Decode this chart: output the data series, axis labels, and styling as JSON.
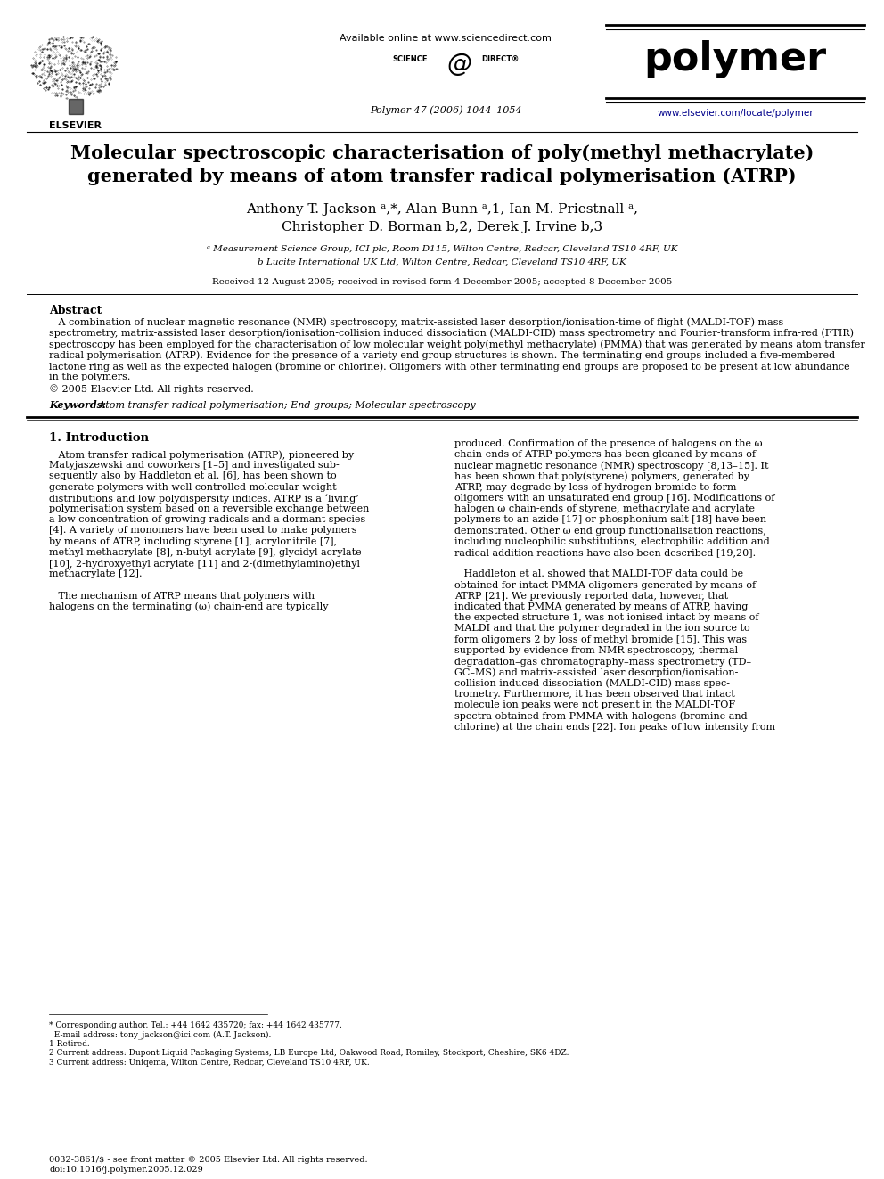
{
  "title_line1": "Molecular spectroscopic characterisation of poly(methyl methacrylate)",
  "title_line2": "generated by means of atom transfer radical polymerisation (ATRP)",
  "authors_line1": "Anthony T. Jackson ᵃ,*, Alan Bunn ᵃ,1, Ian M. Priestnall ᵃ,",
  "authors_line2": "Christopher D. Borman b,2, Derek J. Irvine b,3",
  "affil_a": "ᵃ Measurement Science Group, ICI plc, Room D115, Wilton Centre, Redcar, Cleveland TS10 4RF, UK",
  "affil_b": "b Lucite International UK Ltd, Wilton Centre, Redcar, Cleveland TS10 4RF, UK",
  "received": "Received 12 August 2005; received in revised form 4 December 2005; accepted 8 December 2005",
  "journal_info": "Polymer 47 (2006) 1044–1054",
  "available_online": "Available online at www.sciencedirect.com",
  "journal_name": "polymer",
  "journal_url": "www.elsevier.com/locate/polymer",
  "abstract_title": "Abstract",
  "keywords_label": "Keywords:",
  "keywords_text": " Atom transfer radical polymerisation; End groups; Molecular spectroscopy",
  "section1_title": "1. Introduction",
  "copyright_footer": "0032-3861/$ - see front matter © 2005 Elsevier Ltd. All rights reserved.\ndoi:10.1016/j.polymer.2005.12.029",
  "bg_color": "#ffffff",
  "text_color": "#000000",
  "link_color": "#00008B",
  "abstract_lines": [
    "   A combination of nuclear magnetic resonance (NMR) spectroscopy, matrix-assisted laser desorption/ionisation-time of flight (MALDI-TOF) mass",
    "spectrometry, matrix-assisted laser desorption/ionisation-collision induced dissociation (MALDI-CID) mass spectrometry and Fourier-transform infra-red (FTIR)",
    "spectroscopy has been employed for the characterisation of low molecular weight poly(methyl methacrylate) (PMMA) that was generated by means atom transfer",
    "radical polymerisation (ATRP). Evidence for the presence of a variety end group structures is shown. The terminating end groups included a five-membered",
    "lactone ring as well as the expected halogen (bromine or chlorine). Oligomers with other terminating end groups are proposed to be present at low abundance",
    "in the polymers.",
    "© 2005 Elsevier Ltd. All rights reserved."
  ],
  "left_col_lines": [
    "   Atom transfer radical polymerisation (ATRP), pioneered by",
    "Matyjaszewski and coworkers [1–5] and investigated sub-",
    "sequently also by Haddleton et al. [6], has been shown to",
    "generate polymers with well controlled molecular weight",
    "distributions and low polydispersity indices. ATRP is a ‘living’",
    "polymerisation system based on a reversible exchange between",
    "a low concentration of growing radicals and a dormant species",
    "[4]. A variety of monomers have been used to make polymers",
    "by means of ATRP, including styrene [1], acrylonitrile [7],",
    "methyl methacrylate [8], n-butyl acrylate [9], glycidyl acrylate",
    "[10], 2-hydroxyethyl acrylate [11] and 2-(dimethylamino)ethyl",
    "methacrylate [12].",
    "",
    "   The mechanism of ATRP means that polymers with",
    "halogens on the terminating (ω) chain-end are typically"
  ],
  "right_col_lines": [
    "produced. Confirmation of the presence of halogens on the ω",
    "chain-ends of ATRP polymers has been gleaned by means of",
    "nuclear magnetic resonance (NMR) spectroscopy [8,13–15]. It",
    "has been shown that poly(styrene) polymers, generated by",
    "ATRP, may degrade by loss of hydrogen bromide to form",
    "oligomers with an unsaturated end group [16]. Modifications of",
    "halogen ω chain-ends of styrene, methacrylate and acrylate",
    "polymers to an azide [17] or phosphonium salt [18] have been",
    "demonstrated. Other ω end group functionalisation reactions,",
    "including nucleophilic substitutions, electrophilic addition and",
    "radical addition reactions have also been described [19,20].",
    "",
    "   Haddleton et al. showed that MALDI-TOF data could be",
    "obtained for intact PMMA oligomers generated by means of",
    "ATRP [21]. We previously reported data, however, that",
    "indicated that PMMA generated by means of ATRP, having",
    "the expected structure 1, was not ionised intact by means of",
    "MALDI and that the polymer degraded in the ion source to",
    "form oligomers 2 by loss of methyl bromide [15]. This was",
    "supported by evidence from NMR spectroscopy, thermal",
    "degradation–gas chromatography–mass spectrometry (TD–",
    "GC–MS) and matrix-assisted laser desorption/ionisation-",
    "collision induced dissociation (MALDI-CID) mass spec-",
    "trometry. Furthermore, it has been observed that intact",
    "molecule ion peaks were not present in the MALDI-TOF",
    "spectra obtained from PMMA with halogens (bromine and",
    "chlorine) at the chain ends [22]. Ion peaks of low intensity from"
  ],
  "footnote_lines": [
    "* Corresponding author. Tel.: +44 1642 435720; fax: +44 1642 435777.",
    "  E-mail address: tony_jackson@ici.com (A.T. Jackson).",
    "1 Retired.",
    "2 Current address: Dupont Liquid Packaging Systems, LB Europe Ltd, Oakwood Road, Romiley, Stockport, Cheshire, SK6 4DZ.",
    "3 Current address: Uniqema, Wilton Centre, Redcar, Cleveland TS10 4RF, UK."
  ]
}
